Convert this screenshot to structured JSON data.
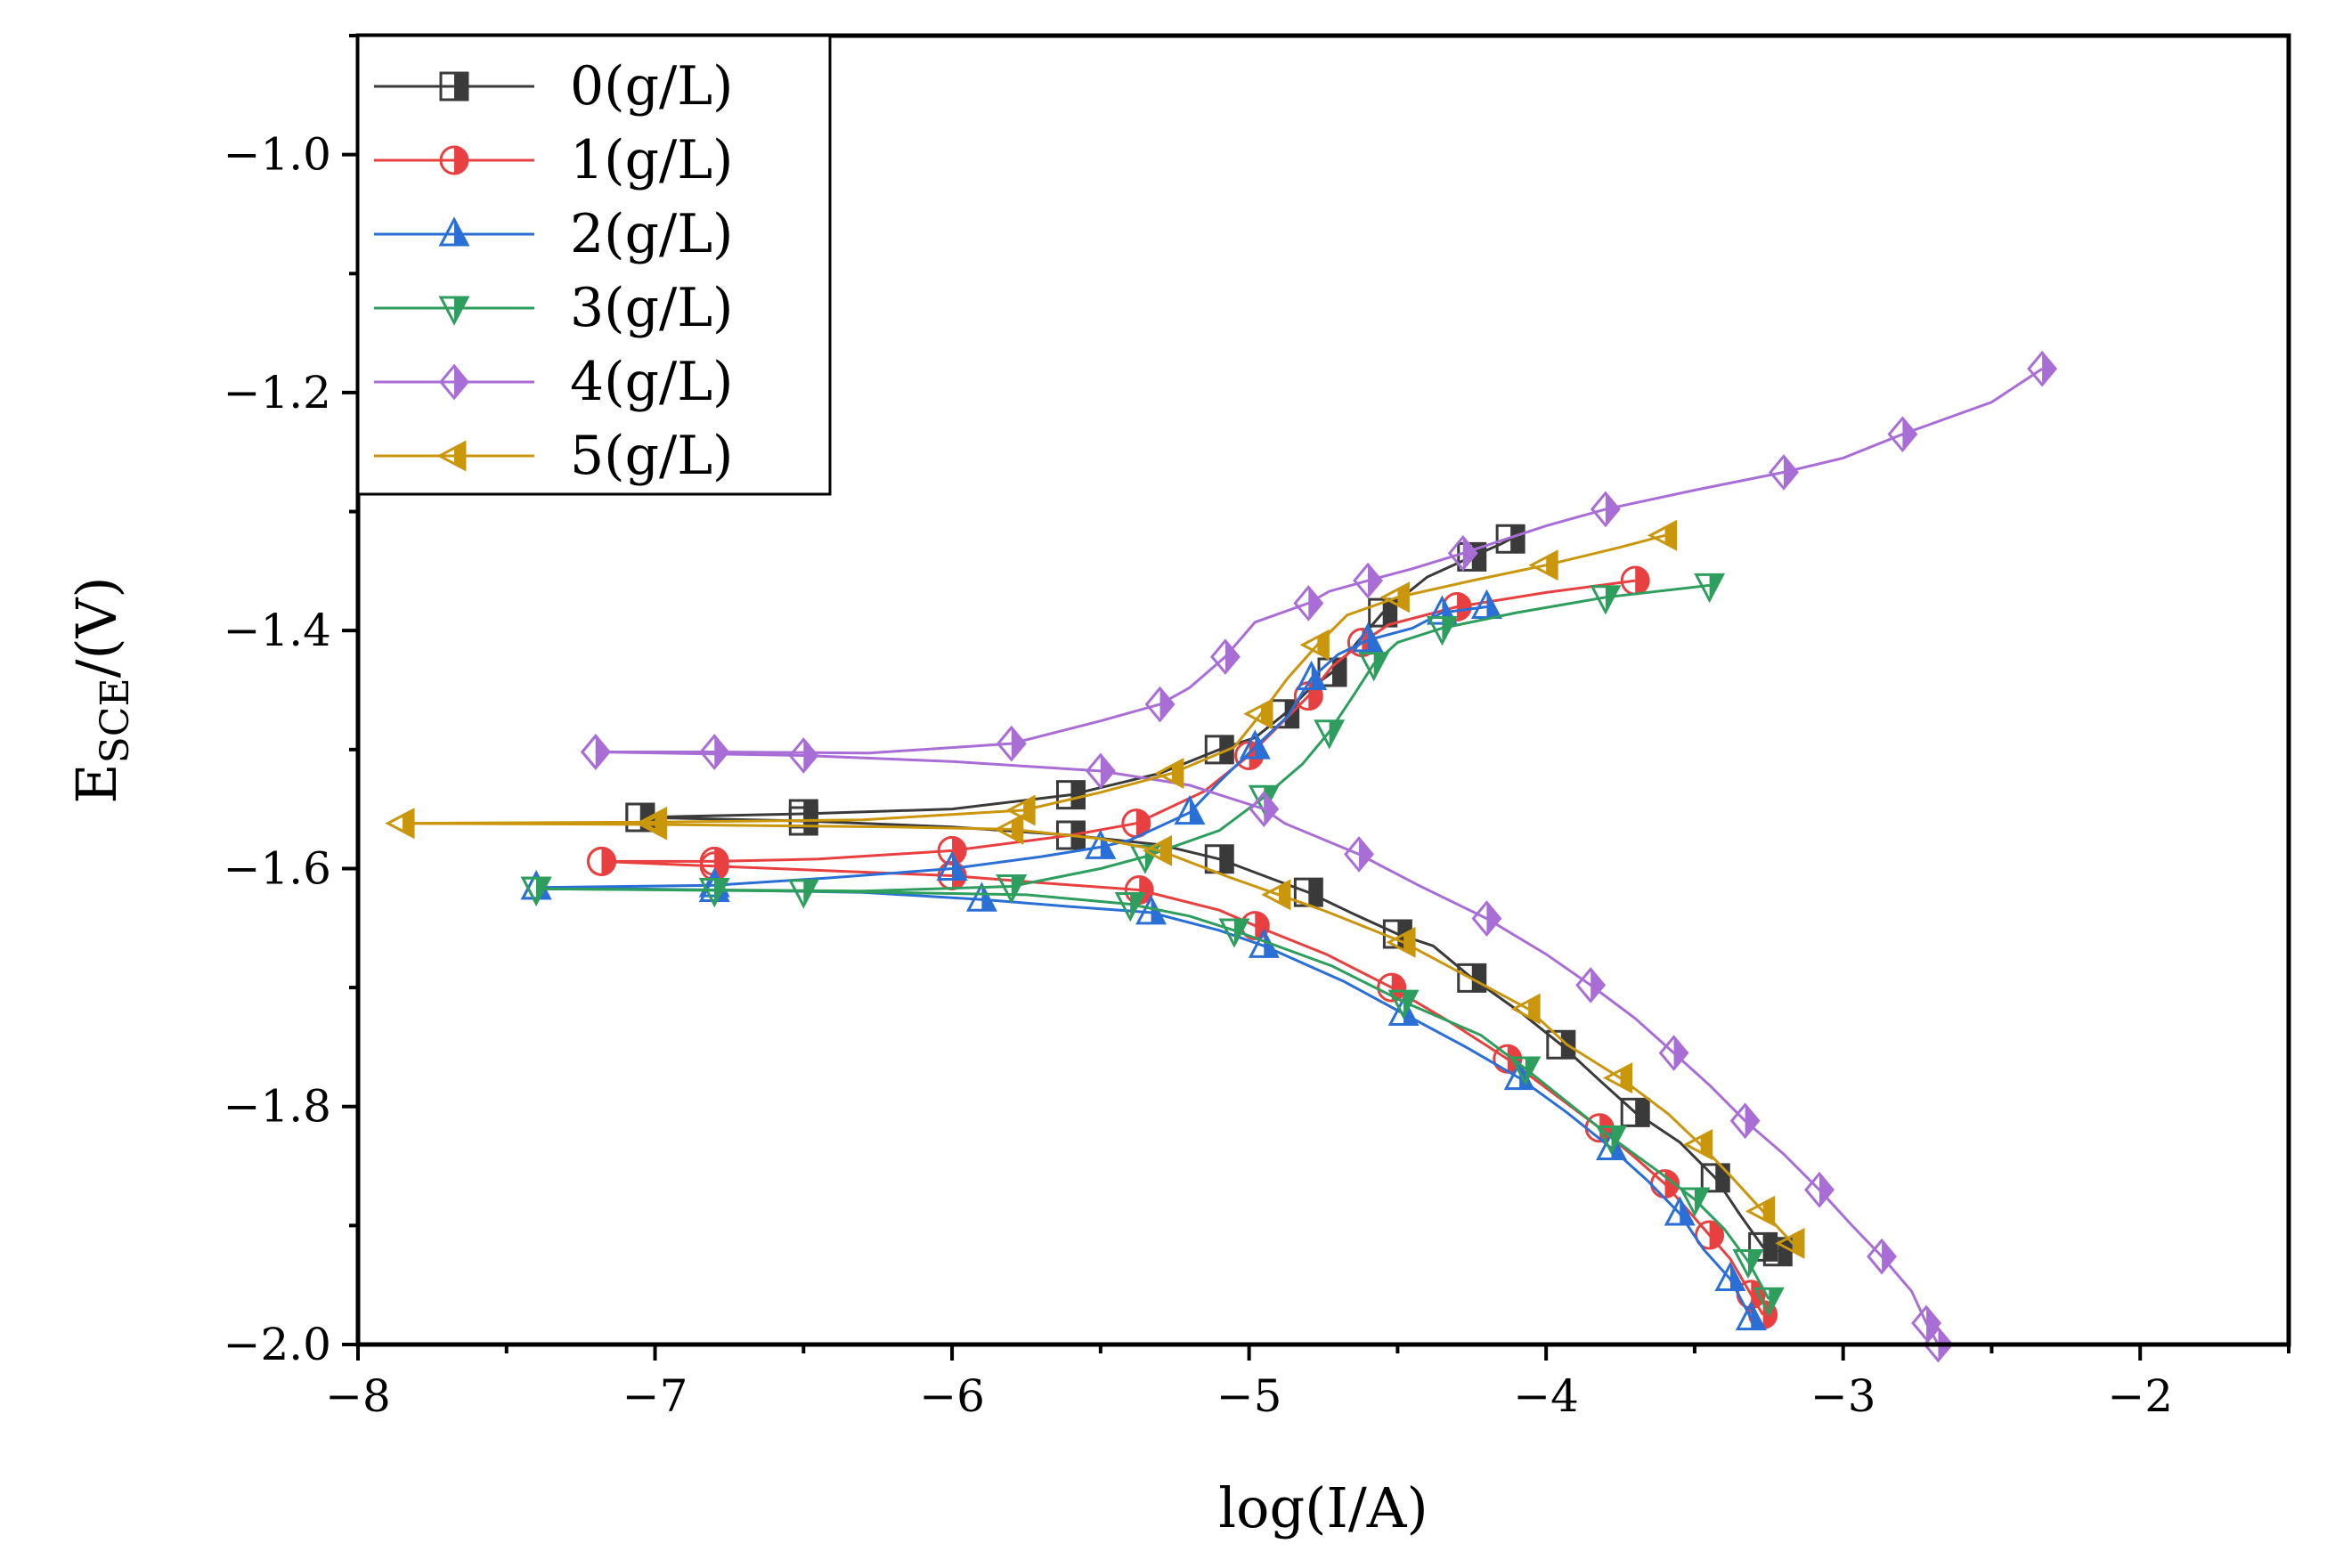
{
  "chart_data": {
    "type": "line",
    "xlabel": "log(I/A)",
    "ylabel_main": "E",
    "ylabel_sub": "SCE",
    "ylabel_tail": "/(V)",
    "xlim": [
      -8,
      -1.5
    ],
    "ylim": [
      -2.0,
      -0.9
    ],
    "x_ticks": [
      -8,
      -7,
      -6,
      -5,
      -4,
      -3,
      -2
    ],
    "x_tick_labels": [
      "−8",
      "−7",
      "−6",
      "−5",
      "−4",
      "−3",
      "−2"
    ],
    "y_ticks": [
      -2.0,
      -1.8,
      -1.6,
      -1.4,
      -1.2,
      -1.0
    ],
    "y_tick_labels": [
      "−2.0",
      "−1.8",
      "−1.6",
      "−1.4",
      "−1.2",
      "−1.0"
    ],
    "legend_position": "top-left",
    "series": [
      {
        "name": "0(g/L)",
        "color": "#3a3a3a",
        "marker": "square",
        "points": [
          [
            -7.05,
            -1.557
          ],
          [
            -6.5,
            -1.554
          ],
          [
            -6.0,
            -1.55
          ],
          [
            -5.6,
            -1.538
          ],
          [
            -5.3,
            -1.52
          ],
          [
            -5.1,
            -1.5
          ],
          [
            -4.98,
            -1.49
          ],
          [
            -4.88,
            -1.47
          ],
          [
            -4.8,
            -1.45
          ],
          [
            -4.72,
            -1.435
          ],
          [
            -4.64,
            -1.411
          ],
          [
            -4.55,
            -1.385
          ],
          [
            -4.4,
            -1.355
          ],
          [
            -4.25,
            -1.338
          ],
          [
            -4.15,
            -1.327
          ],
          [
            -4.12,
            -1.323
          ]
        ],
        "cathodic": [
          [
            -7.05,
            -1.557
          ],
          [
            -6.5,
            -1.56
          ],
          [
            -6.0,
            -1.565
          ],
          [
            -5.6,
            -1.572
          ],
          [
            -5.3,
            -1.58
          ],
          [
            -5.1,
            -1.592
          ],
          [
            -4.93,
            -1.608
          ],
          [
            -4.8,
            -1.62
          ],
          [
            -4.65,
            -1.638
          ],
          [
            -4.5,
            -1.655
          ],
          [
            -4.38,
            -1.665
          ],
          [
            -4.25,
            -1.692
          ],
          [
            -4.08,
            -1.722
          ],
          [
            -3.95,
            -1.748
          ],
          [
            -3.82,
            -1.778
          ],
          [
            -3.7,
            -1.805
          ],
          [
            -3.55,
            -1.83
          ],
          [
            -3.43,
            -1.86
          ],
          [
            -3.35,
            -1.89
          ],
          [
            -3.27,
            -1.918
          ],
          [
            -3.22,
            -1.922
          ]
        ]
      },
      {
        "name": "1(g/L)",
        "color": "#e84040",
        "marker": "circle",
        "points": [
          [
            -7.18,
            -1.594
          ],
          [
            -6.8,
            -1.594
          ],
          [
            -6.45,
            -1.592
          ],
          [
            -6.0,
            -1.585
          ],
          [
            -5.6,
            -1.572
          ],
          [
            -5.38,
            -1.562
          ],
          [
            -5.15,
            -1.535
          ],
          [
            -5.0,
            -1.505
          ],
          [
            -4.9,
            -1.48
          ],
          [
            -4.8,
            -1.455
          ],
          [
            -4.72,
            -1.43
          ],
          [
            -4.62,
            -1.41
          ],
          [
            -4.53,
            -1.395
          ],
          [
            -4.3,
            -1.38
          ],
          [
            -4.0,
            -1.368
          ],
          [
            -3.7,
            -1.358
          ]
        ],
        "cathodic": [
          [
            -7.18,
            -1.594
          ],
          [
            -6.8,
            -1.598
          ],
          [
            -6.4,
            -1.602
          ],
          [
            -6.0,
            -1.606
          ],
          [
            -5.7,
            -1.612
          ],
          [
            -5.37,
            -1.618
          ],
          [
            -5.1,
            -1.635
          ],
          [
            -4.98,
            -1.648
          ],
          [
            -4.74,
            -1.672
          ],
          [
            -4.52,
            -1.7
          ],
          [
            -4.33,
            -1.728
          ],
          [
            -4.13,
            -1.76
          ],
          [
            -3.97,
            -1.79
          ],
          [
            -3.82,
            -1.818
          ],
          [
            -3.7,
            -1.843
          ],
          [
            -3.6,
            -1.865
          ],
          [
            -3.52,
            -1.888
          ],
          [
            -3.45,
            -1.908
          ],
          [
            -3.38,
            -1.928
          ],
          [
            -3.31,
            -1.958
          ],
          [
            -3.27,
            -1.975
          ]
        ]
      },
      {
        "name": "2(g/L)",
        "color": "#2a6fd6",
        "marker": "triangle-up",
        "points": [
          [
            -7.4,
            -1.616
          ],
          [
            -6.8,
            -1.614
          ],
          [
            -6.42,
            -1.608
          ],
          [
            -6.0,
            -1.6
          ],
          [
            -5.7,
            -1.59
          ],
          [
            -5.5,
            -1.582
          ],
          [
            -5.4,
            -1.576
          ],
          [
            -5.2,
            -1.553
          ],
          [
            -5.1,
            -1.527
          ],
          [
            -4.98,
            -1.498
          ],
          [
            -4.87,
            -1.472
          ],
          [
            -4.79,
            -1.44
          ],
          [
            -4.7,
            -1.42
          ],
          [
            -4.6,
            -1.408
          ],
          [
            -4.45,
            -1.398
          ],
          [
            -4.35,
            -1.385
          ],
          [
            -4.2,
            -1.38
          ]
        ],
        "cathodic": [
          [
            -7.4,
            -1.616
          ],
          [
            -6.8,
            -1.618
          ],
          [
            -6.3,
            -1.62
          ],
          [
            -5.9,
            -1.626
          ],
          [
            -5.6,
            -1.632
          ],
          [
            -5.33,
            -1.637
          ],
          [
            -5.1,
            -1.652
          ],
          [
            -4.95,
            -1.665
          ],
          [
            -4.68,
            -1.695
          ],
          [
            -4.48,
            -1.722
          ],
          [
            -4.27,
            -1.75
          ],
          [
            -4.09,
            -1.776
          ],
          [
            -3.93,
            -1.805
          ],
          [
            -3.78,
            -1.835
          ],
          [
            -3.66,
            -1.862
          ],
          [
            -3.55,
            -1.89
          ],
          [
            -3.47,
            -1.92
          ],
          [
            -3.38,
            -1.945
          ],
          [
            -3.31,
            -1.978
          ]
        ]
      },
      {
        "name": "3(g/L)",
        "color": "#2e9e5e",
        "marker": "triangle-down",
        "points": [
          [
            -7.4,
            -1.617
          ],
          [
            -6.8,
            -1.618
          ],
          [
            -6.3,
            -1.619
          ],
          [
            -5.8,
            -1.615
          ],
          [
            -5.5,
            -1.6
          ],
          [
            -5.35,
            -1.59
          ],
          [
            -5.1,
            -1.568
          ],
          [
            -4.95,
            -1.54
          ],
          [
            -4.82,
            -1.512
          ],
          [
            -4.73,
            -1.485
          ],
          [
            -4.65,
            -1.455
          ],
          [
            -4.58,
            -1.428
          ],
          [
            -4.5,
            -1.41
          ],
          [
            -4.35,
            -1.398
          ],
          [
            -4.1,
            -1.385
          ],
          [
            -3.8,
            -1.372
          ],
          [
            -3.45,
            -1.362
          ]
        ],
        "cathodic": [
          [
            -7.4,
            -1.617
          ],
          [
            -6.5,
            -1.619
          ],
          [
            -5.75,
            -1.622
          ],
          [
            -5.4,
            -1.63
          ],
          [
            -5.2,
            -1.64
          ],
          [
            -5.05,
            -1.652
          ],
          [
            -4.72,
            -1.682
          ],
          [
            -4.48,
            -1.712
          ],
          [
            -4.22,
            -1.74
          ],
          [
            -4.07,
            -1.768
          ],
          [
            -3.93,
            -1.796
          ],
          [
            -3.78,
            -1.826
          ],
          [
            -3.62,
            -1.855
          ],
          [
            -3.5,
            -1.878
          ],
          [
            -3.4,
            -1.903
          ],
          [
            -3.32,
            -1.93
          ],
          [
            -3.25,
            -1.962
          ]
        ]
      },
      {
        "name": "4(g/L)",
        "color": "#a86ed6",
        "marker": "diamond",
        "points": [
          [
            -7.2,
            -1.502
          ],
          [
            -6.8,
            -1.502
          ],
          [
            -6.28,
            -1.503
          ],
          [
            -5.8,
            -1.495
          ],
          [
            -5.5,
            -1.476
          ],
          [
            -5.3,
            -1.462
          ],
          [
            -5.2,
            -1.448
          ],
          [
            -5.08,
            -1.422
          ],
          [
            -4.98,
            -1.393
          ],
          [
            -4.8,
            -1.377
          ],
          [
            -4.73,
            -1.367
          ],
          [
            -4.6,
            -1.358
          ],
          [
            -4.45,
            -1.348
          ],
          [
            -4.28,
            -1.335
          ],
          [
            -4.0,
            -1.312
          ],
          [
            -3.8,
            -1.298
          ],
          [
            -3.5,
            -1.282
          ],
          [
            -3.2,
            -1.267
          ],
          [
            -3.0,
            -1.255
          ],
          [
            -2.8,
            -1.235
          ],
          [
            -2.5,
            -1.208
          ],
          [
            -2.33,
            -1.18
          ]
        ],
        "cathodic": [
          [
            -7.2,
            -1.502
          ],
          [
            -6.5,
            -1.505
          ],
          [
            -6.0,
            -1.51
          ],
          [
            -5.5,
            -1.518
          ],
          [
            -5.2,
            -1.53
          ],
          [
            -4.95,
            -1.55
          ],
          [
            -4.88,
            -1.562
          ],
          [
            -4.63,
            -1.588
          ],
          [
            -4.43,
            -1.614
          ],
          [
            -4.2,
            -1.642
          ],
          [
            -4.0,
            -1.672
          ],
          [
            -3.85,
            -1.698
          ],
          [
            -3.7,
            -1.726
          ],
          [
            -3.57,
            -1.755
          ],
          [
            -3.45,
            -1.782
          ],
          [
            -3.33,
            -1.812
          ],
          [
            -3.2,
            -1.84
          ],
          [
            -3.08,
            -1.87
          ],
          [
            -2.97,
            -1.9
          ],
          [
            -2.87,
            -1.926
          ],
          [
            -2.77,
            -1.955
          ],
          [
            -2.72,
            -1.982
          ],
          [
            -2.68,
            -2.0
          ]
        ]
      },
      {
        "name": "5(g/L)",
        "color": "#c9960c",
        "marker": "triangle-left",
        "points": [
          [
            -7.85,
            -1.562
          ],
          [
            -7.0,
            -1.561
          ],
          [
            -6.3,
            -1.559
          ],
          [
            -5.76,
            -1.551
          ],
          [
            -5.5,
            -1.536
          ],
          [
            -5.26,
            -1.52
          ],
          [
            -5.05,
            -1.498
          ],
          [
            -4.96,
            -1.47
          ],
          [
            -4.87,
            -1.44
          ],
          [
            -4.77,
            -1.412
          ],
          [
            -4.67,
            -1.387
          ],
          [
            -4.5,
            -1.372
          ],
          [
            -4.25,
            -1.358
          ],
          [
            -4.0,
            -1.345
          ],
          [
            -3.75,
            -1.33
          ],
          [
            -3.6,
            -1.32
          ]
        ],
        "cathodic": [
          [
            -7.85,
            -1.562
          ],
          [
            -7.0,
            -1.563
          ],
          [
            -6.2,
            -1.565
          ],
          [
            -5.8,
            -1.567
          ],
          [
            -5.5,
            -1.575
          ],
          [
            -5.3,
            -1.585
          ],
          [
            -5.07,
            -1.607
          ],
          [
            -4.9,
            -1.622
          ],
          [
            -4.74,
            -1.636
          ],
          [
            -4.48,
            -1.662
          ],
          [
            -4.27,
            -1.69
          ],
          [
            -4.06,
            -1.718
          ],
          [
            -3.93,
            -1.748
          ],
          [
            -3.75,
            -1.776
          ],
          [
            -3.59,
            -1.806
          ],
          [
            -3.48,
            -1.832
          ],
          [
            -3.38,
            -1.858
          ],
          [
            -3.27,
            -1.888
          ],
          [
            -3.17,
            -1.915
          ]
        ]
      }
    ]
  }
}
